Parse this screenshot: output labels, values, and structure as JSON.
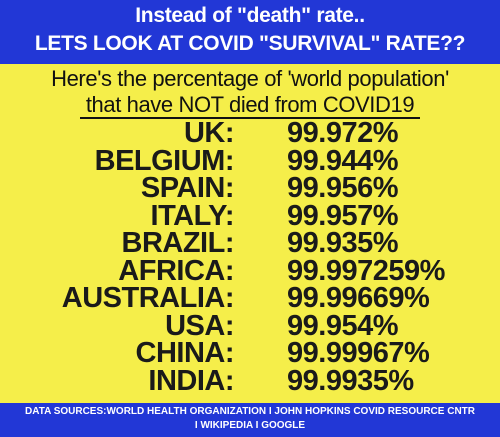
{
  "header": {
    "line1": "Instead of \"death\" rate..",
    "line2": "LETS LOOK AT COVID \"SURVIVAL\" RATE??"
  },
  "subtitle": {
    "line1": "Here's the percentage of 'world population'",
    "line2": "that have NOT died from COVID19"
  },
  "rows": [
    {
      "country": "UK:",
      "value": "99.972%"
    },
    {
      "country": "BELGIUM:",
      "value": "99.944%"
    },
    {
      "country": "SPAIN:",
      "value": "99.956%"
    },
    {
      "country": "ITALY:",
      "value": "99.957%"
    },
    {
      "country": "BRAZIL:",
      "value": "99.935%"
    },
    {
      "country": "AFRICA:",
      "value": "99.997259%"
    },
    {
      "country": "AUSTRALIA:",
      "value": "99.99669%"
    },
    {
      "country": "USA:",
      "value": "99.954%"
    },
    {
      "country": "CHINA:",
      "value": "99.99967%"
    },
    {
      "country": "INDIA:",
      "value": "99.9935%"
    }
  ],
  "footer": {
    "line1": "DATA SOURCES:WORLD HEALTH ORGANIZATION I JOHN HOPKINS COVID RESOURCE CNTR",
    "line2": "I WIKIPEDIA I GOOGLE"
  },
  "colors": {
    "background": "#f5ee4a",
    "banner": "#2237d6",
    "text": "#1a1a1a"
  }
}
